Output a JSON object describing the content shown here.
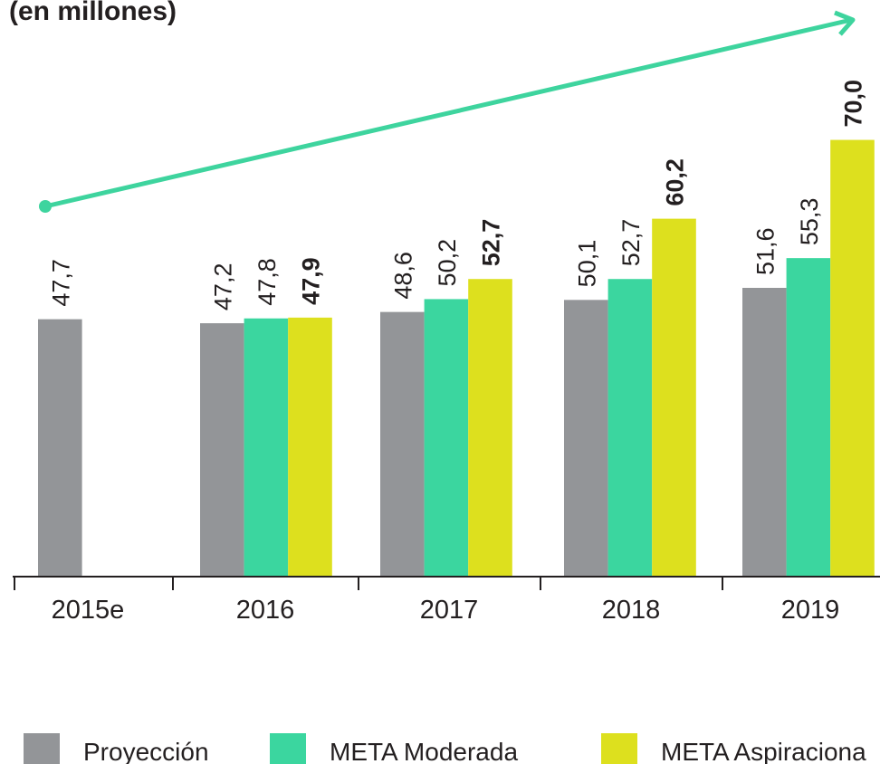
{
  "chart_data": {
    "type": "bar",
    "title": "(en millones)",
    "categories": [
      "2015e",
      "2016",
      "2017",
      "2018",
      "2019"
    ],
    "series": [
      {
        "name": "Proyección",
        "color": "#939598",
        "values": [
          47.7,
          47.2,
          48.6,
          50.1,
          51.6
        ],
        "value_labels": [
          "47,7",
          "47,2",
          "48,6",
          "50,1",
          "51,6"
        ]
      },
      {
        "name": "META Moderada",
        "color": "#3bd69f",
        "values": [
          null,
          47.8,
          50.2,
          52.7,
          55.3
        ],
        "value_labels": [
          null,
          "47,8",
          "50,2",
          "52,7",
          "55,3"
        ]
      },
      {
        "name": "META Aspiraciona",
        "color": "#dde01e",
        "values": [
          null,
          47.9,
          52.7,
          60.2,
          70.0
        ],
        "value_labels": [
          null,
          "47,9",
          "52,7",
          "60,2",
          "70,0"
        ]
      }
    ],
    "ylim": [
      15.8,
      87.4
    ]
  }
}
